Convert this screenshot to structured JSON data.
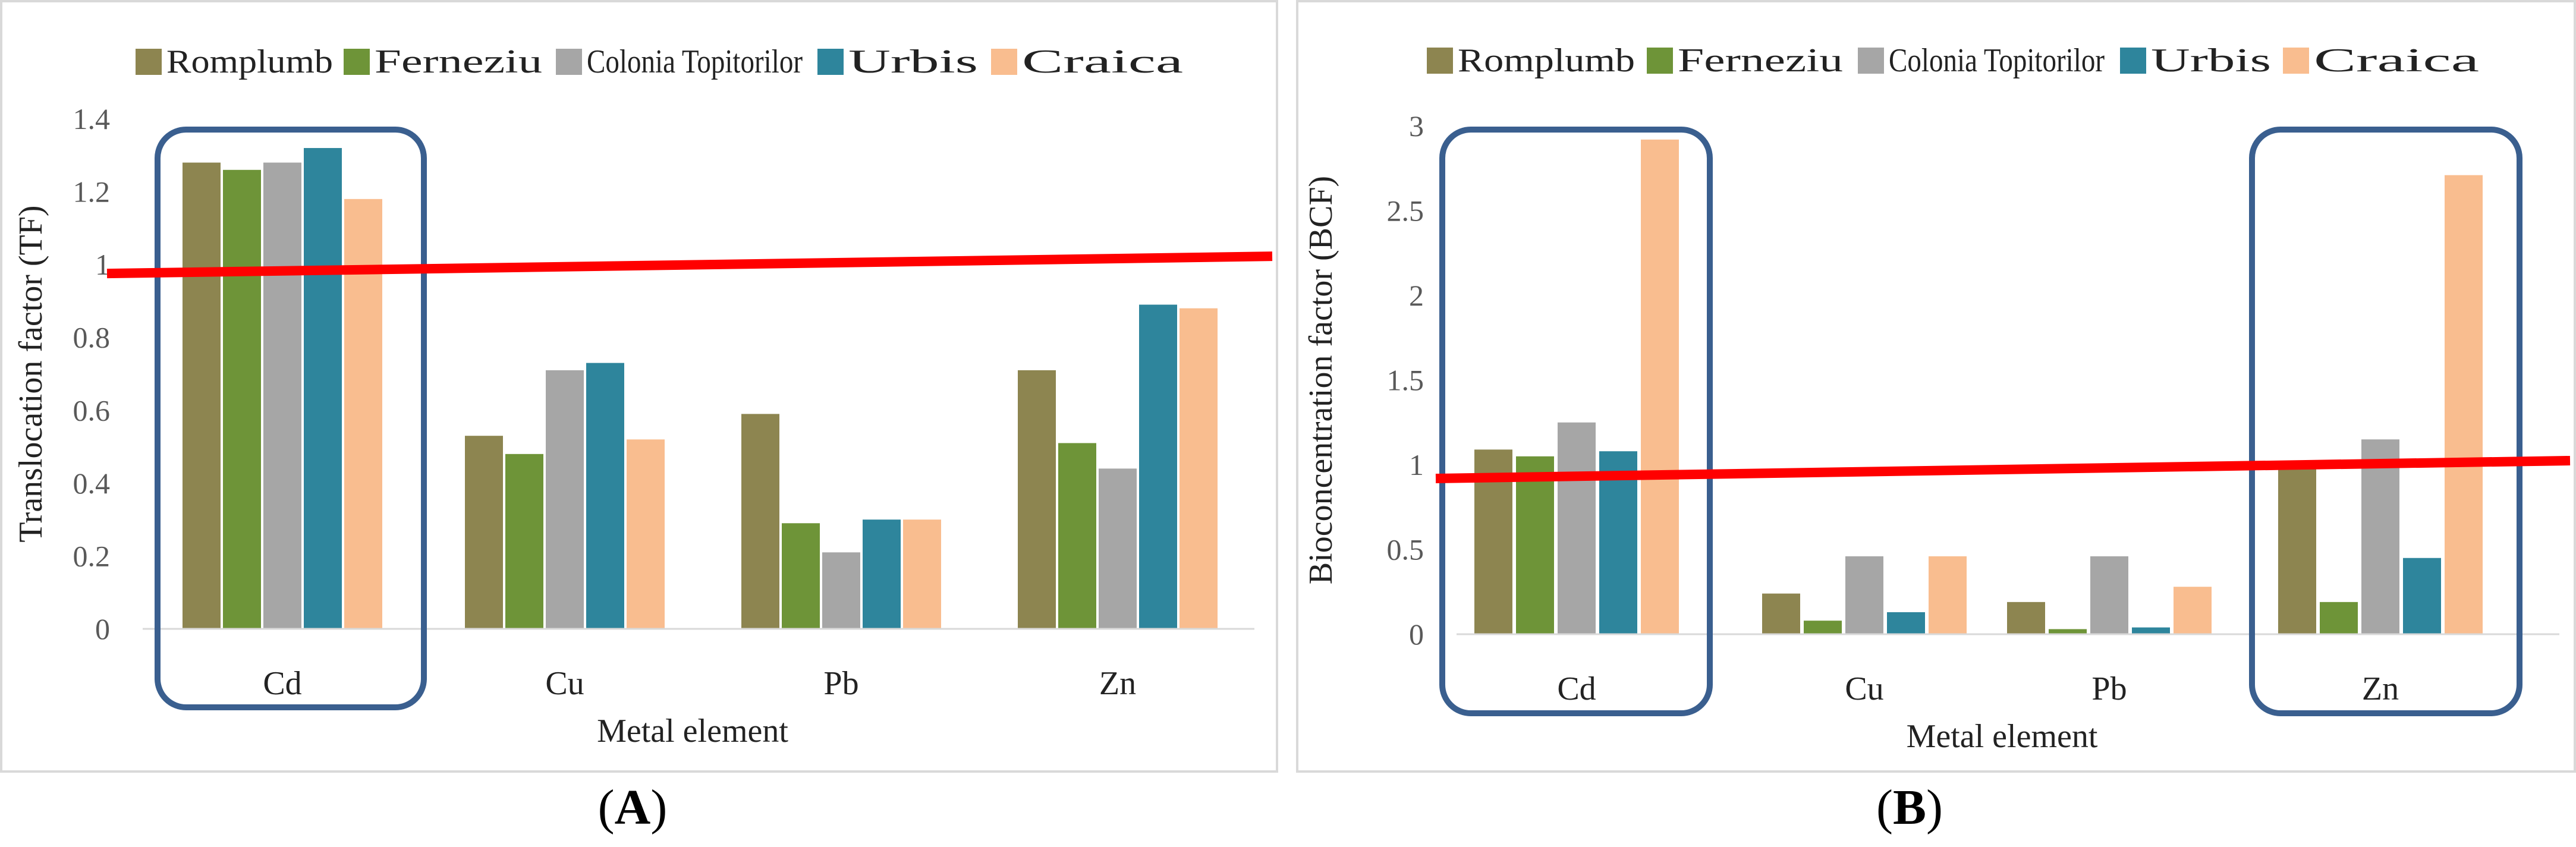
{
  "legend": [
    "Romplumb",
    "Ferneziu",
    "Colonia Topitorilor",
    "Urbis",
    "Craica"
  ],
  "colors": {
    "Romplumb": "#8d8550",
    "Ferneziu": "#6e9438",
    "Colonia Topitorilor": "#a6a6a6",
    "Urbis": "#2e859c",
    "Craica": "#f9bd8f",
    "threshold": "#ff0000",
    "highlight": "#3a5f8f",
    "frame": "#d9d9d9",
    "axis_text": "#595959"
  },
  "chart_data": [
    {
      "type": "bar",
      "panel": "A",
      "categories": [
        "Cd",
        "Cu",
        "Pb",
        "Zn"
      ],
      "series": [
        {
          "name": "Romplumb",
          "values": [
            1.28,
            0.53,
            0.59,
            0.71
          ]
        },
        {
          "name": "Ferneziu",
          "values": [
            1.26,
            0.48,
            0.29,
            0.51
          ]
        },
        {
          "name": "Colonia Topitorilor",
          "values": [
            1.28,
            0.71,
            0.21,
            0.44
          ]
        },
        {
          "name": "Urbis",
          "values": [
            1.32,
            0.73,
            0.3,
            0.89
          ]
        },
        {
          "name": "Craica",
          "values": [
            1.18,
            0.52,
            0.3,
            0.88
          ]
        }
      ],
      "threshold": 1,
      "highlighted_categories": [
        "Cd"
      ],
      "xlabel": "Metal element",
      "ylabel": "Translocation factor (TF)",
      "ylim": [
        0,
        1.4
      ],
      "yticks": [
        "0",
        "0.2",
        "0.4",
        "0.6",
        "0.8",
        "1",
        "1.2",
        "1.4"
      ],
      "legend_position": "top"
    },
    {
      "type": "bar",
      "panel": "B",
      "categories": [
        "Cd",
        "Cu",
        "Pb",
        "Zn"
      ],
      "series": [
        {
          "name": "Romplumb",
          "values": [
            1.09,
            0.24,
            0.19,
            0.99
          ]
        },
        {
          "name": "Ferneziu",
          "values": [
            1.05,
            0.08,
            0.03,
            0.19
          ]
        },
        {
          "name": "Colonia Topitorilor",
          "values": [
            1.25,
            0.46,
            0.46,
            1.15
          ]
        },
        {
          "name": "Urbis",
          "values": [
            1.08,
            0.13,
            0.04,
            0.45
          ]
        },
        {
          "name": "Craica",
          "values": [
            2.92,
            0.46,
            0.28,
            2.71
          ]
        }
      ],
      "threshold": 1,
      "highlighted_categories": [
        "Cd",
        "Zn"
      ],
      "xlabel": "Metal element",
      "ylabel": "Bioconcentration factor (BCF)",
      "ylim": [
        0,
        3
      ],
      "yticks": [
        "0",
        "0.5",
        "1",
        "1.5",
        "2",
        "2.5",
        "3"
      ],
      "legend_position": "top"
    }
  ],
  "captions": {
    "A": "A",
    "B": "B"
  }
}
